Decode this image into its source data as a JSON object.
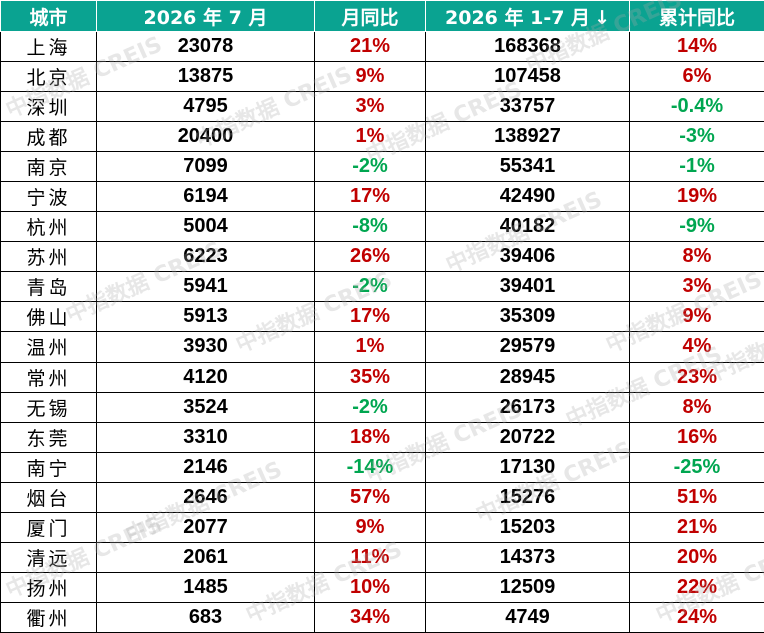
{
  "header": {
    "city": "城市",
    "month": "2026 年 7 月",
    "mom": "月同比",
    "ytd": "2026 年 1-7 月",
    "ytd_sort_icon": "↓",
    "ytd_yoy": "累计同比"
  },
  "watermark": "中指数据 CREIS",
  "colors": {
    "header_bg": "#0aa391",
    "positive": "#c00000",
    "negative": "#00a650"
  },
  "rows": [
    {
      "city": "上海",
      "month": "23078",
      "mom": "21%",
      "ytd": "168368",
      "ytd_yoy": "14%"
    },
    {
      "city": "北京",
      "month": "13875",
      "mom": "9%",
      "ytd": "107458",
      "ytd_yoy": "6%"
    },
    {
      "city": "深圳",
      "month": "4795",
      "mom": "3%",
      "ytd": "33757",
      "ytd_yoy": "-0.4%"
    },
    {
      "city": "成都",
      "month": "20400",
      "mom": "1%",
      "ytd": "138927",
      "ytd_yoy": "-3%"
    },
    {
      "city": "南京",
      "month": "7099",
      "mom": "-2%",
      "ytd": "55341",
      "ytd_yoy": "-1%"
    },
    {
      "city": "宁波",
      "month": "6194",
      "mom": "17%",
      "ytd": "42490",
      "ytd_yoy": "19%"
    },
    {
      "city": "杭州",
      "month": "5004",
      "mom": "-8%",
      "ytd": "40182",
      "ytd_yoy": "-9%"
    },
    {
      "city": "苏州",
      "month": "6223",
      "mom": "26%",
      "ytd": "39406",
      "ytd_yoy": "8%"
    },
    {
      "city": "青岛",
      "month": "5941",
      "mom": "-2%",
      "ytd": "39401",
      "ytd_yoy": "3%"
    },
    {
      "city": "佛山",
      "month": "5913",
      "mom": "17%",
      "ytd": "35309",
      "ytd_yoy": "9%"
    },
    {
      "city": "温州",
      "month": "3930",
      "mom": "1%",
      "ytd": "29579",
      "ytd_yoy": "4%"
    },
    {
      "city": "常州",
      "month": "4120",
      "mom": "35%",
      "ytd": "28945",
      "ytd_yoy": "23%"
    },
    {
      "city": "无锡",
      "month": "3524",
      "mom": "-2%",
      "ytd": "26173",
      "ytd_yoy": "8%"
    },
    {
      "city": "东莞",
      "month": "3310",
      "mom": "18%",
      "ytd": "20722",
      "ytd_yoy": "16%"
    },
    {
      "city": "南宁",
      "month": "2146",
      "mom": "-14%",
      "ytd": "17130",
      "ytd_yoy": "-25%"
    },
    {
      "city": "烟台",
      "month": "2646",
      "mom": "57%",
      "ytd": "15276",
      "ytd_yoy": "51%"
    },
    {
      "city": "厦门",
      "month": "2077",
      "mom": "9%",
      "ytd": "15203",
      "ytd_yoy": "21%"
    },
    {
      "city": "清远",
      "month": "2061",
      "mom": "11%",
      "ytd": "14373",
      "ytd_yoy": "20%"
    },
    {
      "city": "扬州",
      "month": "1485",
      "mom": "10%",
      "ytd": "12509",
      "ytd_yoy": "22%"
    },
    {
      "city": "衢州",
      "month": "683",
      "mom": "34%",
      "ytd": "4749",
      "ytd_yoy": "24%"
    }
  ]
}
